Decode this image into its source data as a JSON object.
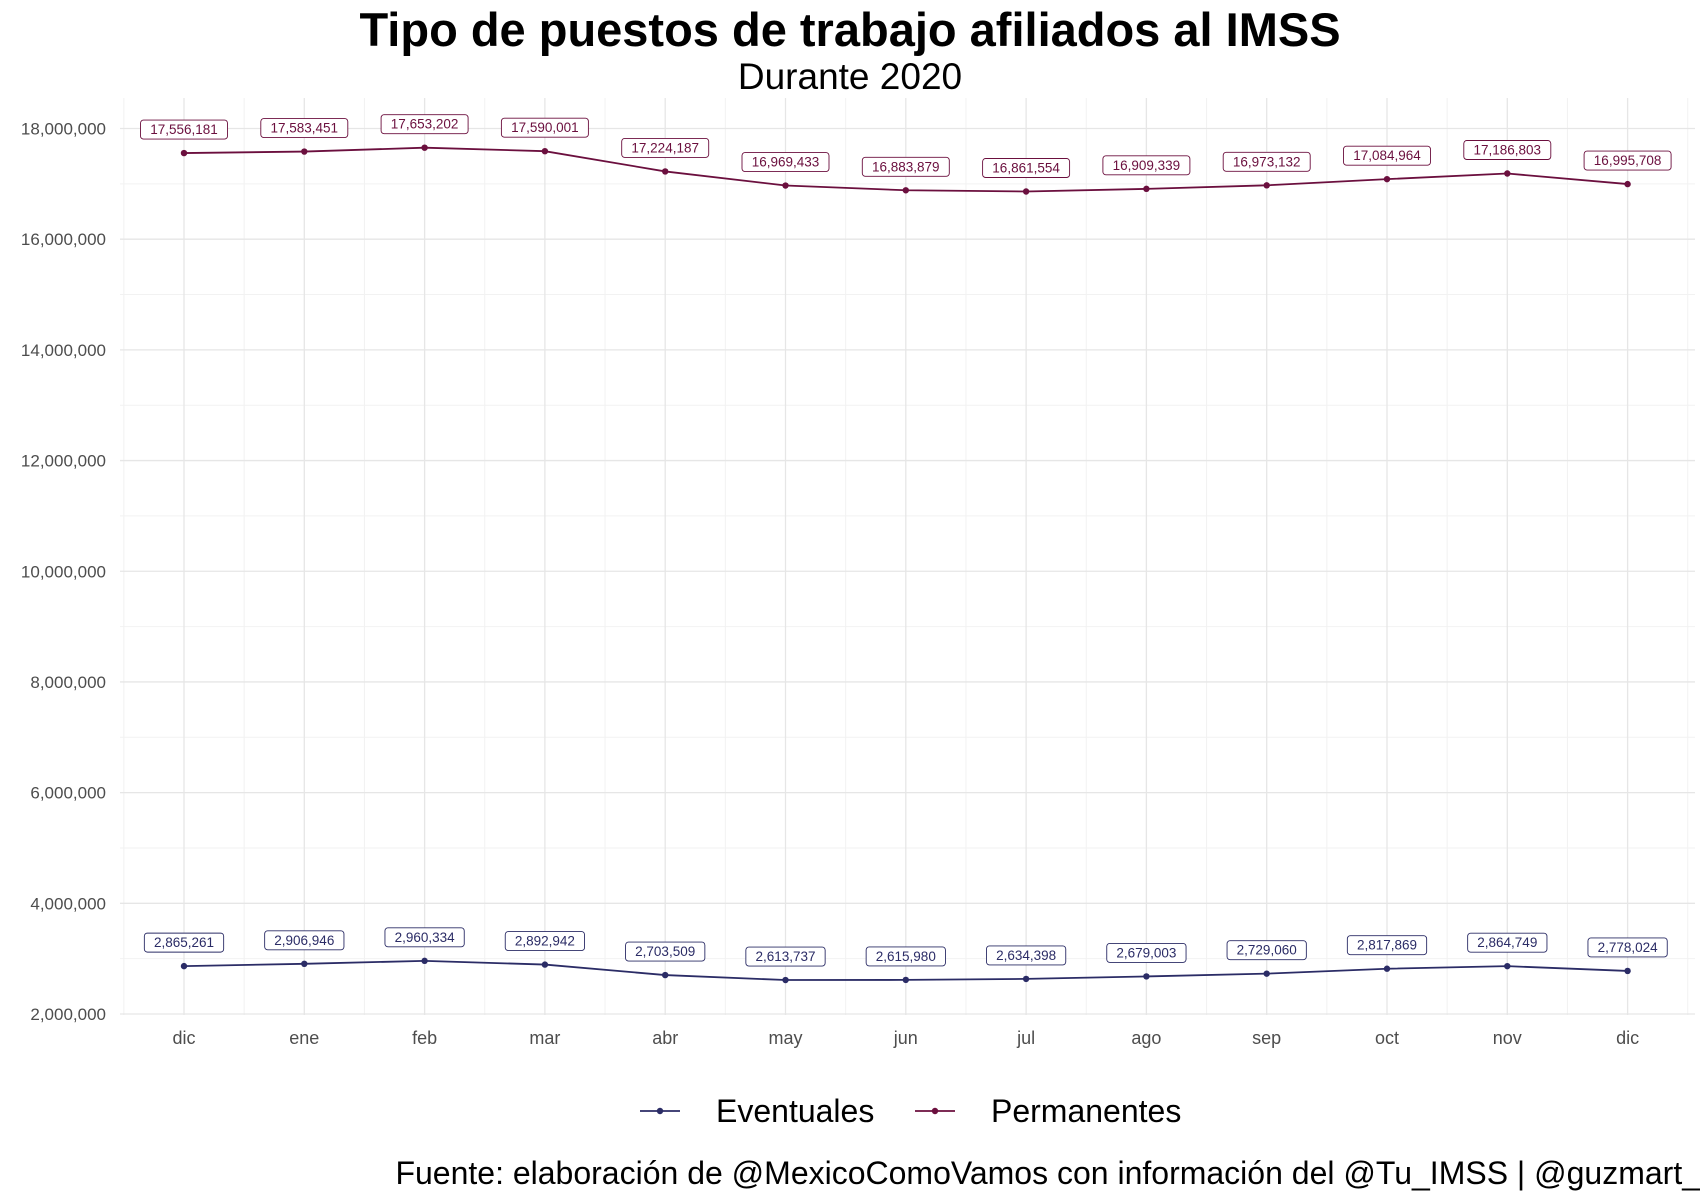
{
  "header": {
    "title": "Tipo de puestos de trabajo afiliados al IMSS",
    "subtitle": "Durante 2020"
  },
  "caption": "Fuente: elaboración de @MexicoComoVamos con información del @Tu_IMSS | @guzmart_",
  "chart_data": {
    "type": "line",
    "title": "Tipo de puestos de trabajo afiliados al IMSS",
    "subtitle": "Durante 2020",
    "xlabel": "",
    "ylabel": "",
    "categories": [
      "dic",
      "ene",
      "feb",
      "mar",
      "abr",
      "may",
      "jun",
      "jul",
      "ago",
      "sep",
      "oct",
      "nov",
      "dic"
    ],
    "ylim": [
      2000000,
      18000000
    ],
    "yticks": [
      2000000,
      4000000,
      6000000,
      8000000,
      10000000,
      12000000,
      14000000,
      16000000,
      18000000
    ],
    "ytick_labels": [
      "2,000,000",
      "4,000,000",
      "6,000,000",
      "8,000,000",
      "10,000,000",
      "12,000,000",
      "14,000,000",
      "16,000,000",
      "18,000,000"
    ],
    "grid": true,
    "legend_position": "bottom",
    "series": [
      {
        "name": "Eventuales",
        "color": "#2b2c66",
        "values": [
          2865261,
          2906946,
          2960334,
          2892942,
          2703509,
          2613737,
          2615980,
          2634398,
          2679003,
          2729060,
          2817869,
          2864749,
          2778024
        ],
        "labels": [
          "2,865,261",
          "2,906,946",
          "2,960,334",
          "2,892,942",
          "2,703,509",
          "2,613,737",
          "2,615,980",
          "2,634,398",
          "2,679,003",
          "2,729,060",
          "2,817,869",
          "2,864,749",
          "2,778,024"
        ]
      },
      {
        "name": "Permanentes",
        "color": "#6b0f3e",
        "values": [
          17556181,
          17583451,
          17653202,
          17590001,
          17224187,
          16969433,
          16883879,
          16861554,
          16909339,
          16973132,
          17084964,
          17186803,
          16995708
        ],
        "labels": [
          "17,556,181",
          "17,583,451",
          "17,653,202",
          "17,590,001",
          "17,224,187",
          "16,969,433",
          "16,883,879",
          "16,861,554",
          "16,909,339",
          "16,973,132",
          "17,084,964",
          "17,186,803",
          "16,995,708"
        ]
      }
    ]
  }
}
